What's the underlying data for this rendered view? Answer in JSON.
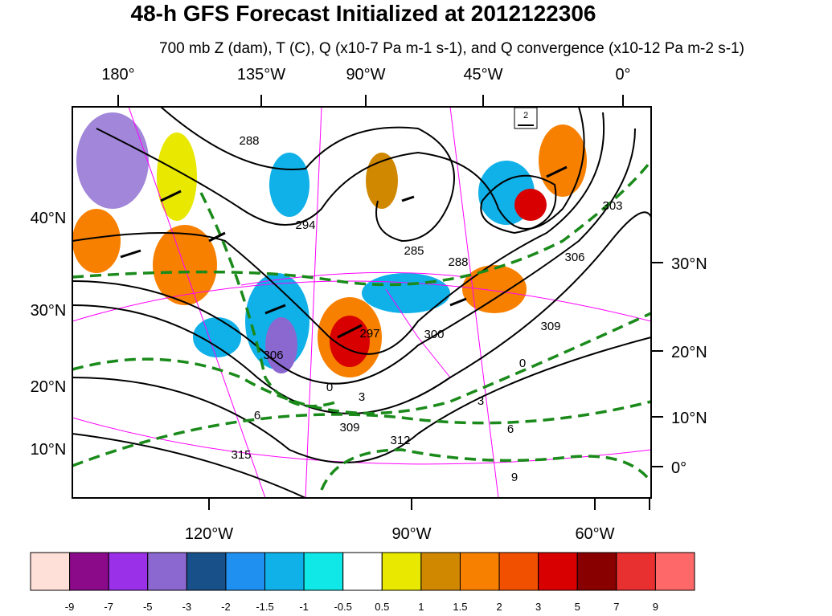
{
  "header": {
    "title": "48-h GFS Forecast Initialized at 2012122306",
    "subtitle": "700 mb Z (dam), T (C), Q (x10-7 Pa m-1 s-1), and Q convergence (x10-12 Pa m-2 s-1)"
  },
  "map": {
    "top_labels": [
      "180°",
      "135°W",
      "90°W",
      "45°W",
      "0°"
    ],
    "left_labels": [
      "40°N",
      "30°N",
      "20°N",
      "10°N"
    ],
    "right_labels": [
      "30°N",
      "20°N",
      "10°N",
      "0°"
    ],
    "bottom_labels": [
      "120°W",
      "90°W",
      "60°W"
    ],
    "vector_reference": "2",
    "contour_labels": [
      "288",
      "294",
      "285",
      "288",
      "297",
      "300",
      "306",
      "309",
      "303",
      "312",
      "315",
      "306",
      "0",
      "3",
      "6",
      "6",
      "9",
      "0",
      "3",
      "309"
    ]
  },
  "colorbar": {
    "colors": [
      "#ffe0d8",
      "#8a0a8a",
      "#9a30e8",
      "#8a68d0",
      "#18508a",
      "#2090f0",
      "#10b0e8",
      "#10e8e8",
      "#ffffff",
      "#e8e800",
      "#d08800",
      "#f88000",
      "#f05000",
      "#d80000",
      "#880000",
      "#e83030",
      "#ff6868"
    ],
    "labels": [
      "-9",
      "-7",
      "-5",
      "-3",
      "-2",
      "-1.5",
      "-1",
      "-0.5",
      "0.5",
      "1",
      "1.5",
      "2",
      "3",
      "5",
      "7",
      "9"
    ]
  }
}
